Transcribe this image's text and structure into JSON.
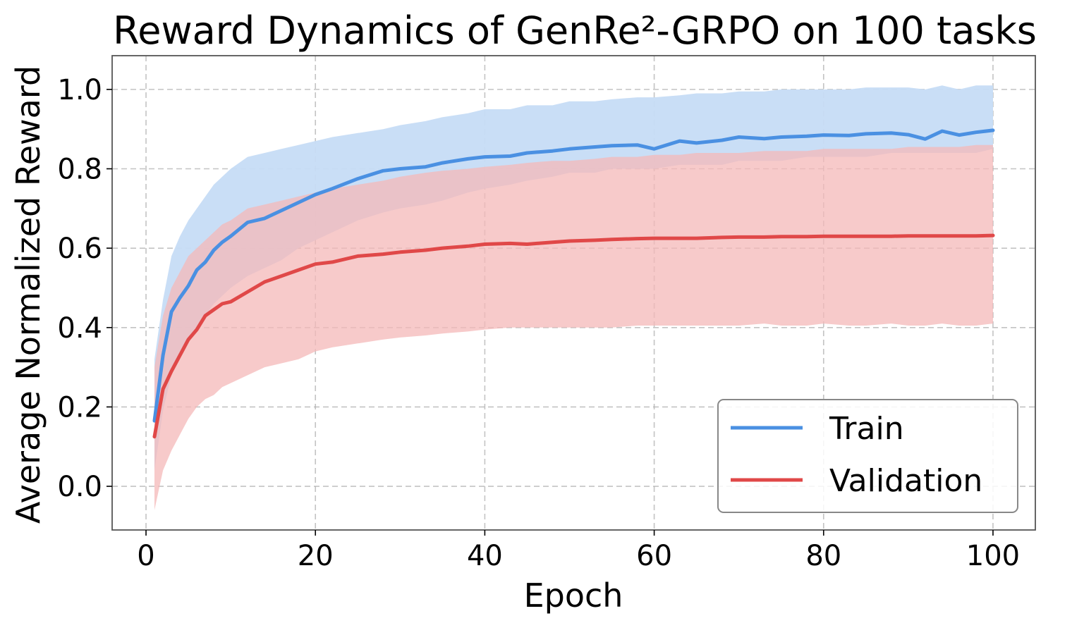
{
  "chart_data": {
    "type": "line",
    "title": "Reward Dynamics of GenRe²-GRPO on 100 tasks",
    "xlabel": "Epoch",
    "ylabel": "Average Normalized Reward",
    "xlim": [
      -4,
      105
    ],
    "ylim": [
      -0.11,
      1.085
    ],
    "xticks": [
      "0",
      "20",
      "40",
      "60",
      "80",
      "100"
    ],
    "yticks": [
      "0.0",
      "0.2",
      "0.4",
      "0.6",
      "0.8",
      "1.0"
    ],
    "grid": true,
    "legend_position": "lower-right",
    "series": [
      {
        "name": "Train",
        "color": "#4a90e2",
        "band_color": "#c6dcf5",
        "x": [
          1,
          2,
          3,
          4,
          5,
          6,
          7,
          8,
          9,
          10,
          12,
          14,
          16,
          18,
          20,
          22,
          25,
          28,
          30,
          33,
          35,
          38,
          40,
          43,
          45,
          48,
          50,
          53,
          55,
          58,
          60,
          63,
          65,
          68,
          70,
          73,
          75,
          78,
          80,
          83,
          85,
          88,
          90,
          92,
          94,
          96,
          98,
          100
        ],
        "mean": [
          0.165,
          0.33,
          0.44,
          0.475,
          0.505,
          0.545,
          0.565,
          0.595,
          0.615,
          0.63,
          0.665,
          0.675,
          0.695,
          0.715,
          0.735,
          0.75,
          0.775,
          0.795,
          0.8,
          0.805,
          0.815,
          0.825,
          0.83,
          0.832,
          0.84,
          0.845,
          0.85,
          0.855,
          0.858,
          0.86,
          0.85,
          0.87,
          0.865,
          0.872,
          0.88,
          0.876,
          0.88,
          0.882,
          0.885,
          0.884,
          0.888,
          0.89,
          0.886,
          0.875,
          0.895,
          0.885,
          0.892,
          0.897
        ],
        "lower": [
          0.04,
          0.19,
          0.28,
          0.33,
          0.37,
          0.4,
          0.43,
          0.46,
          0.48,
          0.5,
          0.53,
          0.55,
          0.57,
          0.6,
          0.62,
          0.64,
          0.67,
          0.69,
          0.7,
          0.71,
          0.72,
          0.74,
          0.75,
          0.76,
          0.77,
          0.78,
          0.79,
          0.79,
          0.8,
          0.8,
          0.8,
          0.81,
          0.81,
          0.81,
          0.82,
          0.82,
          0.82,
          0.83,
          0.83,
          0.83,
          0.83,
          0.84,
          0.84,
          0.84,
          0.84,
          0.84,
          0.84,
          0.85
        ],
        "upper": [
          0.32,
          0.47,
          0.58,
          0.63,
          0.67,
          0.7,
          0.73,
          0.76,
          0.78,
          0.8,
          0.83,
          0.84,
          0.85,
          0.86,
          0.87,
          0.88,
          0.89,
          0.9,
          0.91,
          0.92,
          0.93,
          0.94,
          0.95,
          0.95,
          0.96,
          0.96,
          0.97,
          0.97,
          0.975,
          0.98,
          0.98,
          0.985,
          0.99,
          0.99,
          0.995,
          0.995,
          1.0,
          1.0,
          1.0,
          1.0,
          1.005,
          1.005,
          1.005,
          1.0,
          1.01,
          1.0,
          1.01,
          1.01
        ]
      },
      {
        "name": "Validation",
        "color": "#e04848",
        "band_color": "#f4b8b8",
        "x": [
          1,
          2,
          3,
          4,
          5,
          6,
          7,
          8,
          9,
          10,
          12,
          14,
          16,
          18,
          20,
          22,
          25,
          28,
          30,
          33,
          35,
          38,
          40,
          43,
          45,
          48,
          50,
          53,
          55,
          58,
          60,
          63,
          65,
          68,
          70,
          73,
          75,
          78,
          80,
          83,
          85,
          88,
          90,
          92,
          94,
          96,
          98,
          100
        ],
        "mean": [
          0.125,
          0.245,
          0.29,
          0.33,
          0.37,
          0.395,
          0.43,
          0.445,
          0.46,
          0.465,
          0.49,
          0.515,
          0.53,
          0.545,
          0.56,
          0.565,
          0.58,
          0.585,
          0.59,
          0.595,
          0.6,
          0.605,
          0.61,
          0.612,
          0.61,
          0.615,
          0.618,
          0.62,
          0.622,
          0.624,
          0.625,
          0.625,
          0.625,
          0.627,
          0.628,
          0.628,
          0.629,
          0.629,
          0.63,
          0.63,
          0.63,
          0.63,
          0.631,
          0.631,
          0.631,
          0.631,
          0.631,
          0.632
        ],
        "lower": [
          -0.06,
          0.04,
          0.09,
          0.13,
          0.17,
          0.2,
          0.22,
          0.23,
          0.25,
          0.26,
          0.28,
          0.3,
          0.31,
          0.32,
          0.34,
          0.35,
          0.36,
          0.37,
          0.375,
          0.38,
          0.385,
          0.39,
          0.395,
          0.4,
          0.4,
          0.4,
          0.4,
          0.4,
          0.4,
          0.405,
          0.405,
          0.405,
          0.405,
          0.405,
          0.405,
          0.41,
          0.405,
          0.405,
          0.41,
          0.405,
          0.405,
          0.41,
          0.405,
          0.405,
          0.41,
          0.405,
          0.405,
          0.41
        ],
        "upper": [
          0.3,
          0.43,
          0.5,
          0.54,
          0.58,
          0.6,
          0.62,
          0.64,
          0.66,
          0.67,
          0.7,
          0.71,
          0.72,
          0.73,
          0.74,
          0.75,
          0.76,
          0.77,
          0.78,
          0.79,
          0.795,
          0.8,
          0.805,
          0.81,
          0.815,
          0.82,
          0.82,
          0.825,
          0.83,
          0.83,
          0.835,
          0.835,
          0.84,
          0.84,
          0.84,
          0.845,
          0.845,
          0.845,
          0.85,
          0.85,
          0.85,
          0.85,
          0.855,
          0.855,
          0.855,
          0.855,
          0.86,
          0.86
        ]
      }
    ]
  }
}
